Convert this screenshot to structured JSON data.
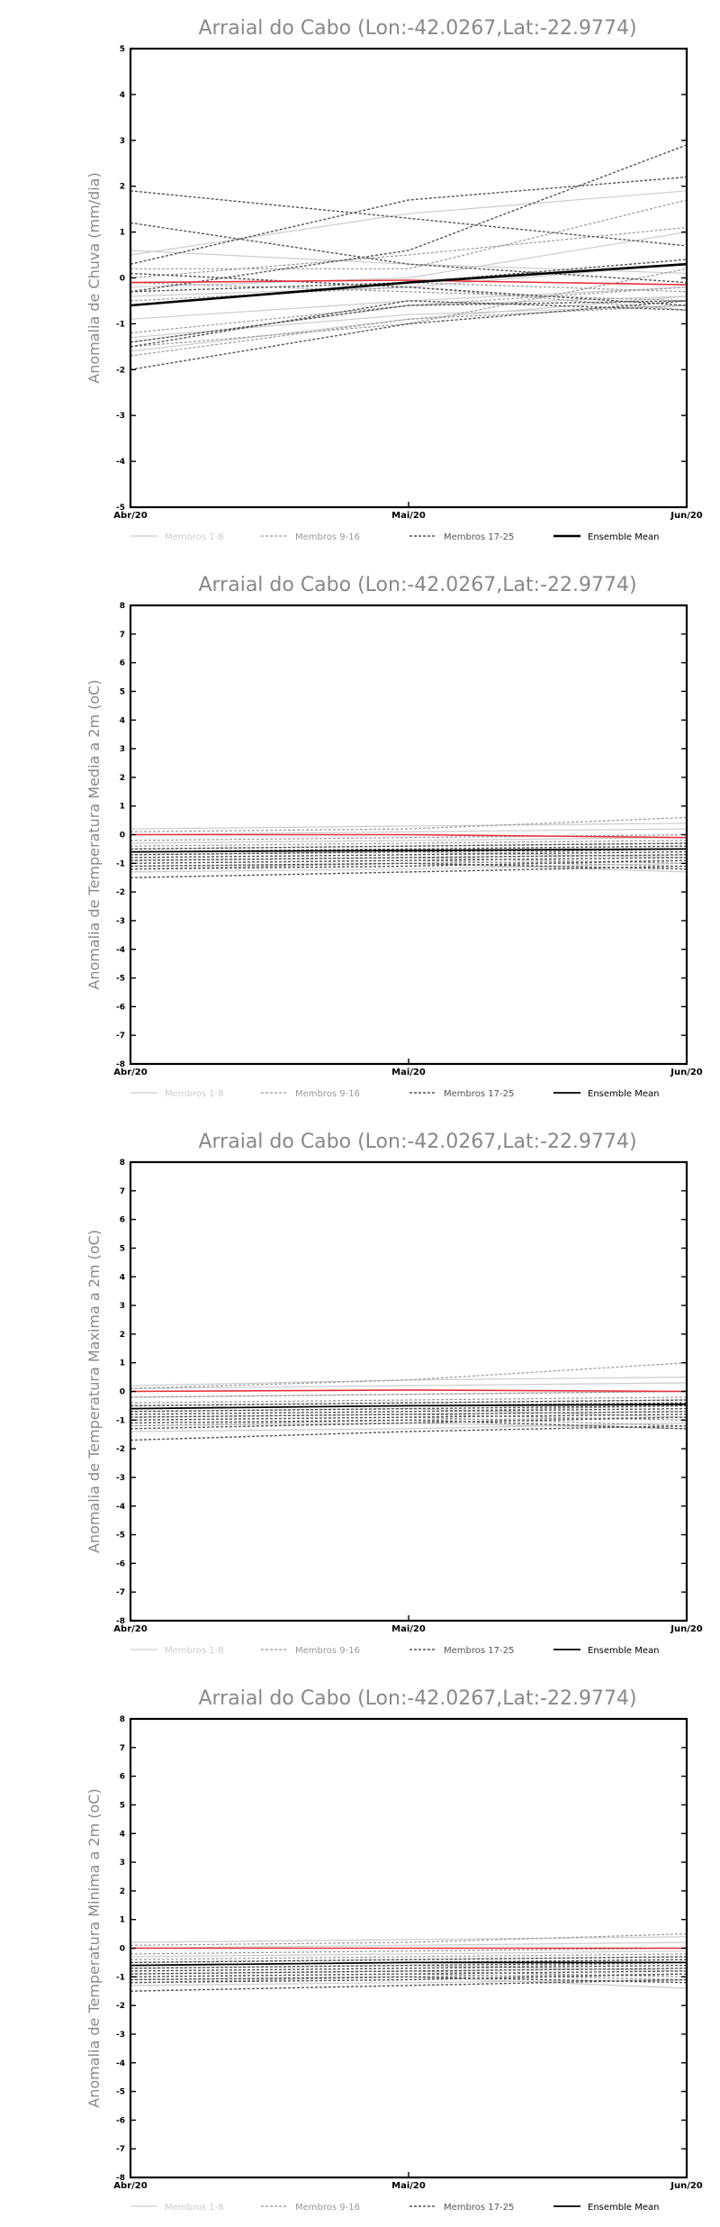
{
  "legend": {
    "members_1_8": "Membros 1-8",
    "members_9_16": "Membros 9-16",
    "members_17_25": "Membros 17-25",
    "ensemble_mean": "Ensemble Mean"
  },
  "colors": {
    "members_1_8": "#cccccc",
    "members_9_16": "#999999",
    "members_17_25": "#555555",
    "ensemble_mean": "#000000",
    "observed": "#e8323c",
    "title": "#888888"
  },
  "chart_data": [
    {
      "type": "line",
      "title": "Arraial do Cabo (Lon:-42.0267,Lat:-22.9774)",
      "ylabel": "Anomalia de Chuva (mm/dia)",
      "xlabel": "",
      "categories": [
        "Abr/20",
        "Mai/20",
        "Jun/20"
      ],
      "ylim": [
        -5,
        5
      ],
      "yticks": [
        -5,
        -4,
        -3,
        -2,
        -1,
        0,
        1,
        2,
        3,
        4,
        5
      ],
      "grid": false,
      "legend_position": "bottom",
      "members_1_8": [
        [
          -1.3,
          -0.8,
          -0.6
        ],
        [
          -0.9,
          -0.5,
          -0.2
        ],
        [
          0.6,
          0.3,
          0.1
        ],
        [
          -1.4,
          -0.6,
          -0.4
        ],
        [
          -0.2,
          0.0,
          1.0
        ],
        [
          -1.6,
          -0.9,
          -0.4
        ],
        [
          0.5,
          1.4,
          1.9
        ],
        [
          -0.4,
          -0.2,
          0.3
        ]
      ],
      "members_9_16": [
        [
          -1.2,
          -0.6,
          -0.2
        ],
        [
          0.0,
          0.5,
          1.1
        ],
        [
          -0.1,
          -0.3,
          -0.5
        ],
        [
          -1.7,
          -0.9,
          -0.6
        ],
        [
          0.2,
          0.2,
          1.7
        ],
        [
          -0.6,
          -0.1,
          -0.3
        ],
        [
          -1.5,
          -1.0,
          0.2
        ],
        [
          -0.5,
          -0.2,
          -0.7
        ]
      ],
      "members_17_25": [
        [
          1.9,
          1.3,
          0.7
        ],
        [
          -2.0,
          -1.0,
          -0.5
        ],
        [
          0.3,
          1.7,
          2.2
        ],
        [
          -1.5,
          -0.5,
          -0.7
        ],
        [
          1.2,
          0.3,
          -0.1
        ],
        [
          -0.3,
          0.6,
          2.9
        ],
        [
          -1.4,
          -0.6,
          -0.5
        ],
        [
          -0.3,
          -0.1,
          0.4
        ],
        [
          0.1,
          -0.2,
          -0.6
        ]
      ],
      "ensemble_mean": [
        -0.6,
        -0.1,
        0.3
      ],
      "observed": [
        -0.1,
        -0.05,
        -0.15
      ]
    },
    {
      "type": "line",
      "title": "Arraial do Cabo (Lon:-42.0267,Lat:-22.9774)",
      "ylabel": "Anomalia de Temperatura Media a 2m (oC)",
      "xlabel": "",
      "categories": [
        "Abr/20",
        "Mai/20",
        "Jun/20"
      ],
      "ylim": [
        -8,
        8
      ],
      "yticks": [
        -8,
        -7,
        -6,
        -5,
        -4,
        -3,
        -2,
        -1,
        0,
        1,
        2,
        3,
        4,
        5,
        6,
        7,
        8
      ],
      "grid": false,
      "legend_position": "bottom",
      "members_1_8": [
        [
          -0.3,
          -0.2,
          -0.1
        ],
        [
          -1.3,
          -1.2,
          -1.0
        ],
        [
          0.2,
          0.3,
          0.4
        ],
        [
          -0.9,
          -0.8,
          -0.7
        ],
        [
          -0.5,
          -0.4,
          -0.3
        ],
        [
          -1.1,
          -1.0,
          -1.3
        ],
        [
          0.0,
          0.1,
          0.2
        ],
        [
          -0.7,
          -0.6,
          -0.8
        ]
      ],
      "members_9_16": [
        [
          0.1,
          0.2,
          0.6
        ],
        [
          -0.8,
          -0.7,
          -0.5
        ],
        [
          -1.0,
          -0.9,
          -1.1
        ],
        [
          -0.6,
          -0.5,
          -0.4
        ],
        [
          -0.2,
          -0.1,
          0.0
        ],
        [
          -1.2,
          -1.0,
          -0.9
        ],
        [
          -0.4,
          -0.3,
          -0.2
        ],
        [
          -0.9,
          -0.8,
          -1.0
        ]
      ],
      "members_17_25": [
        [
          -1.5,
          -1.3,
          -1.1
        ],
        [
          -0.6,
          -0.5,
          -0.4
        ],
        [
          -0.9,
          -0.8,
          -0.7
        ],
        [
          -1.0,
          -0.9,
          -0.8
        ],
        [
          -0.7,
          -0.6,
          -0.5
        ],
        [
          -1.2,
          -1.1,
          -0.9
        ],
        [
          -0.8,
          -0.7,
          -0.6
        ],
        [
          -0.5,
          -0.4,
          -0.3
        ],
        [
          -1.1,
          -1.0,
          -1.2
        ]
      ],
      "ensemble_mean": [
        -0.6,
        -0.55,
        -0.5
      ],
      "observed": [
        0.0,
        0.0,
        -0.1
      ]
    },
    {
      "type": "line",
      "title": "Arraial do Cabo (Lon:-42.0267,Lat:-22.9774)",
      "ylabel": "Anomalia de Temperatura Maxima a 2m (oC)",
      "xlabel": "",
      "categories": [
        "Abr/20",
        "Mai/20",
        "Jun/20"
      ],
      "ylim": [
        -8,
        8
      ],
      "yticks": [
        -8,
        -7,
        -6,
        -5,
        -4,
        -3,
        -2,
        -1,
        0,
        1,
        2,
        3,
        4,
        5,
        6,
        7,
        8
      ],
      "grid": false,
      "legend_position": "bottom",
      "members_1_8": [
        [
          -0.2,
          -0.1,
          0.0
        ],
        [
          -1.4,
          -1.3,
          -1.1
        ],
        [
          0.2,
          0.4,
          0.5
        ],
        [
          -0.9,
          -0.8,
          -0.7
        ],
        [
          -0.5,
          -0.4,
          -0.3
        ],
        [
          -1.2,
          -1.1,
          -1.3
        ],
        [
          0.1,
          0.2,
          0.3
        ],
        [
          -0.7,
          -0.6,
          -0.9
        ]
      ],
      "members_9_16": [
        [
          0.1,
          0.4,
          1.0
        ],
        [
          -0.8,
          -0.7,
          -0.5
        ],
        [
          -1.0,
          -0.9,
          -1.2
        ],
        [
          -0.6,
          -0.5,
          -0.4
        ],
        [
          -0.2,
          -0.1,
          0.0
        ],
        [
          -1.2,
          -1.0,
          -0.9
        ],
        [
          -0.4,
          -0.3,
          -0.2
        ],
        [
          -0.9,
          -0.8,
          -1.0
        ]
      ],
      "members_17_25": [
        [
          -1.7,
          -1.4,
          -1.2
        ],
        [
          -0.6,
          -0.5,
          -0.4
        ],
        [
          -0.9,
          -0.8,
          -0.7
        ],
        [
          -1.0,
          -0.9,
          -0.8
        ],
        [
          -0.7,
          -0.6,
          -0.5
        ],
        [
          -1.3,
          -1.1,
          -0.9
        ],
        [
          -0.8,
          -0.7,
          -0.6
        ],
        [
          -0.5,
          -0.4,
          -0.3
        ],
        [
          -1.1,
          -1.0,
          -1.3
        ]
      ],
      "ensemble_mean": [
        -0.6,
        -0.5,
        -0.45
      ],
      "observed": [
        0.0,
        0.05,
        0.0
      ]
    },
    {
      "type": "line",
      "title": "Arraial do Cabo (Lon:-42.0267,Lat:-22.9774)",
      "ylabel": "Anomalia de Temperatura Minima a 2m (oC)",
      "xlabel": "",
      "categories": [
        "Abr/20",
        "Mai/20",
        "Jun/20"
      ],
      "ylim": [
        -8,
        8
      ],
      "yticks": [
        -8,
        -7,
        -6,
        -5,
        -4,
        -3,
        -2,
        -1,
        0,
        1,
        2,
        3,
        4,
        5,
        6,
        7,
        8
      ],
      "grid": false,
      "legend_position": "bottom",
      "members_1_8": [
        [
          -0.3,
          -0.2,
          -0.1
        ],
        [
          -1.3,
          -1.2,
          -1.1
        ],
        [
          0.2,
          0.3,
          0.4
        ],
        [
          -0.9,
          -0.8,
          -0.7
        ],
        [
          -0.5,
          -0.4,
          -0.3
        ],
        [
          -1.1,
          -1.0,
          -1.4
        ],
        [
          0.0,
          0.1,
          0.2
        ],
        [
          -0.7,
          -0.6,
          -0.8
        ]
      ],
      "members_9_16": [
        [
          0.1,
          0.2,
          0.5
        ],
        [
          -0.8,
          -0.7,
          -0.5
        ],
        [
          -1.0,
          -0.9,
          -1.1
        ],
        [
          -0.6,
          -0.5,
          -0.4
        ],
        [
          -0.2,
          -0.1,
          0.0
        ],
        [
          -1.2,
          -1.0,
          -0.9
        ],
        [
          -0.4,
          -0.3,
          -0.2
        ],
        [
          -0.9,
          -0.8,
          -1.0
        ]
      ],
      "members_17_25": [
        [
          -1.5,
          -1.3,
          -1.1
        ],
        [
          -0.6,
          -0.5,
          -0.4
        ],
        [
          -0.9,
          -0.8,
          -0.7
        ],
        [
          -1.0,
          -0.9,
          -0.8
        ],
        [
          -0.7,
          -0.6,
          -0.5
        ],
        [
          -1.2,
          -1.1,
          -0.9
        ],
        [
          -0.8,
          -0.7,
          -0.6
        ],
        [
          -0.5,
          -0.4,
          -0.3
        ],
        [
          -1.1,
          -1.0,
          -1.2
        ]
      ],
      "ensemble_mean": [
        -0.6,
        -0.5,
        -0.5
      ],
      "observed": [
        0.0,
        0.0,
        0.0
      ]
    }
  ]
}
